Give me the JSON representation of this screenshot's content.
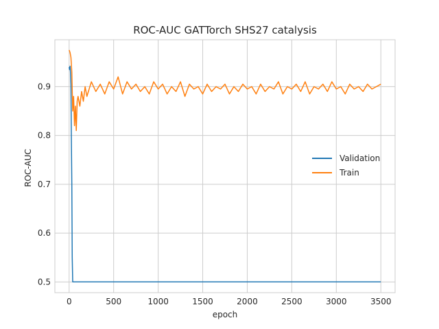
{
  "chart_data": {
    "type": "line",
    "title": "ROC-AUC GATTorch SHS27 catalysis",
    "xlabel": "epoch",
    "ylabel": "ROC-AUC",
    "xlim": [
      -160,
      3660
    ],
    "ylim": [
      0.478,
      0.996
    ],
    "xticks": [
      0,
      500,
      1000,
      1500,
      2000,
      2500,
      3000,
      3500
    ],
    "yticks": [
      0.5,
      0.6,
      0.7,
      0.8,
      0.9
    ],
    "ytick_labels": [
      "0.5",
      "0.6",
      "0.7",
      "0.8",
      "0.9"
    ],
    "grid": true,
    "legend": "center-right",
    "series": [
      {
        "name": "Validation",
        "color": "#1f77b4",
        "x": [
          0,
          5,
          10,
          15,
          20,
          25,
          30,
          35,
          40,
          60,
          100,
          500,
          1000,
          1500,
          2000,
          2500,
          3000,
          3500
        ],
        "y": [
          0.94,
          0.935,
          0.942,
          0.93,
          0.905,
          0.8,
          0.7,
          0.55,
          0.5,
          0.5,
          0.5,
          0.5,
          0.5,
          0.5,
          0.5,
          0.5,
          0.5,
          0.5
        ]
      },
      {
        "name": "Train",
        "color": "#ff7f0e",
        "x": [
          0,
          10,
          20,
          30,
          40,
          50,
          60,
          70,
          80,
          90,
          100,
          120,
          140,
          160,
          180,
          200,
          250,
          300,
          350,
          400,
          450,
          500,
          550,
          600,
          650,
          700,
          750,
          800,
          850,
          900,
          950,
          1000,
          1050,
          1100,
          1150,
          1200,
          1250,
          1300,
          1350,
          1400,
          1450,
          1500,
          1550,
          1600,
          1650,
          1700,
          1750,
          1800,
          1850,
          1900,
          1950,
          2000,
          2050,
          2100,
          2150,
          2200,
          2250,
          2300,
          2350,
          2400,
          2450,
          2500,
          2550,
          2600,
          2650,
          2700,
          2750,
          2800,
          2850,
          2900,
          2950,
          3000,
          3050,
          3100,
          3150,
          3200,
          3250,
          3300,
          3350,
          3400,
          3450,
          3500
        ],
        "y": [
          0.975,
          0.97,
          0.96,
          0.93,
          0.85,
          0.88,
          0.82,
          0.86,
          0.81,
          0.87,
          0.88,
          0.86,
          0.89,
          0.87,
          0.9,
          0.88,
          0.91,
          0.89,
          0.905,
          0.885,
          0.91,
          0.895,
          0.92,
          0.885,
          0.91,
          0.895,
          0.905,
          0.89,
          0.9,
          0.885,
          0.91,
          0.895,
          0.905,
          0.885,
          0.9,
          0.89,
          0.91,
          0.88,
          0.905,
          0.895,
          0.9,
          0.885,
          0.905,
          0.89,
          0.9,
          0.895,
          0.905,
          0.885,
          0.9,
          0.89,
          0.905,
          0.895,
          0.9,
          0.885,
          0.905,
          0.89,
          0.9,
          0.895,
          0.91,
          0.885,
          0.9,
          0.895,
          0.905,
          0.89,
          0.91,
          0.885,
          0.9,
          0.895,
          0.905,
          0.89,
          0.91,
          0.895,
          0.9,
          0.885,
          0.905,
          0.895,
          0.9,
          0.89,
          0.905,
          0.895,
          0.9,
          0.905
        ]
      }
    ]
  }
}
